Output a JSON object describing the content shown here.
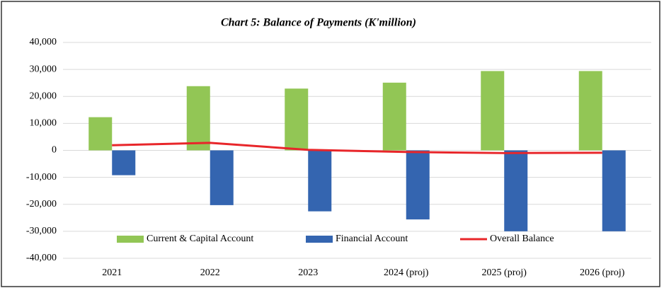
{
  "chart_data": {
    "type": "bar",
    "title": "Chart 5: Balance of Payments (K'million)",
    "categories": [
      "2021",
      "2022",
      "2023",
      "2024 (proj)",
      "2025 (proj)",
      "2026 (proj)"
    ],
    "series": [
      {
        "name": "Current & Capital Account",
        "color": "#92c655",
        "type": "bar",
        "values": [
          12300,
          23800,
          22900,
          25100,
          29400,
          29400
        ]
      },
      {
        "name": "Financial Account",
        "color": "#3465b0",
        "type": "bar",
        "values": [
          -9200,
          -20300,
          -22600,
          -25600,
          -30000,
          -30000
        ]
      },
      {
        "name": "Overall Balance",
        "color": "#e8262a",
        "type": "line",
        "values": [
          1900,
          2800,
          200,
          -600,
          -1000,
          -900
        ]
      }
    ],
    "ylim": [
      -40000,
      40000
    ],
    "yticks": [
      {
        "value": -40000,
        "label": "-40,000"
      },
      {
        "value": -30000,
        "label": "-30,000"
      },
      {
        "value": -20000,
        "label": "-20,000"
      },
      {
        "value": -10000,
        "label": "-10,000"
      },
      0,
      {
        "value": 10000,
        "label": "10,000"
      },
      {
        "value": 20000,
        "label": "20,000"
      },
      {
        "value": 30000,
        "label": "30,000"
      },
      {
        "value": 40000,
        "label": "40,000"
      }
    ],
    "grid": true,
    "legend": "bottom"
  }
}
